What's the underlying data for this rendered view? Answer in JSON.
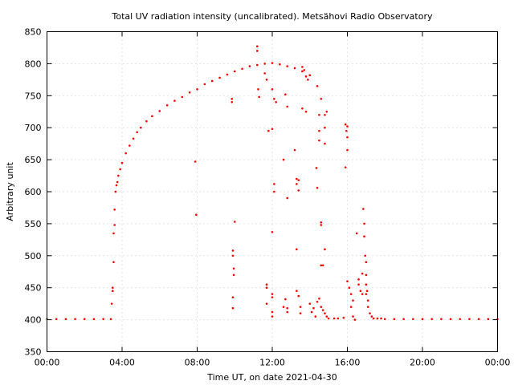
{
  "chart_data": {
    "type": "scatter",
    "title": "Total UV radiation intensity (uncalibrated). Metsähovi Radio Observatory",
    "xlabel": "Time UT, on date 2021-04-30",
    "ylabel": "Arbitrary unit",
    "xlim": [
      0,
      24
    ],
    "ylim": [
      350,
      850
    ],
    "x_ticks": [
      0,
      4,
      8,
      12,
      16,
      20,
      24
    ],
    "x_tick_labels": [
      "00:00",
      "04:00",
      "08:00",
      "12:00",
      "16:00",
      "20:00",
      "00:00"
    ],
    "y_ticks": [
      350,
      400,
      450,
      500,
      550,
      600,
      650,
      700,
      750,
      800,
      850
    ],
    "y_tick_labels": [
      "350",
      "400",
      "450",
      "500",
      "550",
      "600",
      "650",
      "700",
      "750",
      "800",
      "850"
    ],
    "grid": true,
    "marker_color": "#ff0000",
    "series": [
      {
        "points": [
          [
            0.0,
            401
          ],
          [
            0.5,
            401
          ],
          [
            1.0,
            401
          ],
          [
            1.5,
            401
          ],
          [
            2.0,
            401
          ],
          [
            2.5,
            401
          ],
          [
            3.0,
            401
          ],
          [
            3.4,
            401
          ],
          [
            3.45,
            425
          ],
          [
            3.5,
            445
          ],
          [
            3.5,
            450
          ],
          [
            3.55,
            490
          ],
          [
            3.55,
            535
          ],
          [
            3.6,
            548
          ],
          [
            3.6,
            572
          ],
          [
            3.65,
            600
          ],
          [
            3.7,
            610
          ],
          [
            3.75,
            615
          ],
          [
            3.8,
            625
          ],
          [
            3.9,
            635
          ],
          [
            4.0,
            645
          ],
          [
            4.2,
            660
          ],
          [
            4.4,
            672
          ],
          [
            4.6,
            683
          ],
          [
            4.8,
            693
          ],
          [
            5.0,
            700
          ],
          [
            5.3,
            710
          ],
          [
            5.6,
            718
          ],
          [
            6.0,
            726
          ],
          [
            6.4,
            735
          ],
          [
            6.8,
            742
          ],
          [
            7.2,
            748
          ],
          [
            7.6,
            755
          ],
          [
            8.0,
            760
          ],
          [
            8.4,
            768
          ],
          [
            8.8,
            773
          ],
          [
            9.2,
            778
          ],
          [
            9.6,
            783
          ],
          [
            10.0,
            788
          ],
          [
            10.4,
            792
          ],
          [
            10.8,
            796
          ],
          [
            11.2,
            798
          ],
          [
            11.6,
            800
          ],
          [
            12.0,
            801
          ],
          [
            12.4,
            799
          ],
          [
            12.8,
            796
          ],
          [
            13.2,
            793
          ],
          [
            13.6,
            788
          ],
          [
            14.0,
            782
          ],
          [
            14.4,
            765
          ],
          [
            14.6,
            745
          ],
          [
            14.8,
            720
          ],
          [
            7.9,
            647
          ],
          [
            7.95,
            564
          ],
          [
            9.85,
            745
          ],
          [
            9.85,
            740
          ],
          [
            9.9,
            508
          ],
          [
            9.9,
            500
          ],
          [
            9.95,
            480
          ],
          [
            9.95,
            470
          ],
          [
            9.9,
            435
          ],
          [
            9.9,
            418
          ],
          [
            10.0,
            553
          ],
          [
            11.2,
            827
          ],
          [
            11.2,
            820
          ],
          [
            11.25,
            760
          ],
          [
            11.3,
            748
          ],
          [
            11.6,
            785
          ],
          [
            11.7,
            775
          ],
          [
            11.8,
            695
          ],
          [
            11.7,
            455
          ],
          [
            11.7,
            450
          ],
          [
            11.7,
            425
          ],
          [
            12.0,
            760
          ],
          [
            12.1,
            745
          ],
          [
            12.2,
            740
          ],
          [
            12.0,
            698
          ],
          [
            12.1,
            612
          ],
          [
            12.1,
            600
          ],
          [
            12.0,
            537
          ],
          [
            12.0,
            440
          ],
          [
            12.0,
            435
          ],
          [
            12.0,
            412
          ],
          [
            12.0,
            405
          ],
          [
            12.6,
            650
          ],
          [
            12.7,
            752
          ],
          [
            12.8,
            733
          ],
          [
            12.8,
            590
          ],
          [
            12.6,
            420
          ],
          [
            12.7,
            432
          ],
          [
            12.8,
            418
          ],
          [
            12.8,
            412
          ],
          [
            13.2,
            665
          ],
          [
            13.3,
            620
          ],
          [
            13.3,
            612
          ],
          [
            13.4,
            618
          ],
          [
            13.4,
            602
          ],
          [
            13.3,
            510
          ],
          [
            13.3,
            445
          ],
          [
            13.4,
            437
          ],
          [
            13.5,
            420
          ],
          [
            13.5,
            410
          ],
          [
            13.6,
            795
          ],
          [
            13.7,
            790
          ],
          [
            13.8,
            780
          ],
          [
            13.9,
            775
          ],
          [
            13.8,
            725
          ],
          [
            13.6,
            730
          ],
          [
            14.0,
            782
          ],
          [
            14.0,
            425
          ],
          [
            14.1,
            412
          ],
          [
            14.2,
            418
          ],
          [
            14.3,
            405
          ],
          [
            14.35,
            637
          ],
          [
            14.4,
            606
          ],
          [
            14.5,
            720
          ],
          [
            14.5,
            695
          ],
          [
            14.5,
            680
          ],
          [
            14.6,
            552
          ],
          [
            14.6,
            548
          ],
          [
            14.6,
            485
          ],
          [
            14.7,
            485
          ],
          [
            14.8,
            510
          ],
          [
            14.8,
            700
          ],
          [
            14.8,
            675
          ],
          [
            14.9,
            725
          ],
          [
            14.4,
            428
          ],
          [
            14.5,
            433
          ],
          [
            14.6,
            420
          ],
          [
            14.7,
            415
          ],
          [
            14.8,
            410
          ],
          [
            14.9,
            405
          ],
          [
            15.0,
            402
          ],
          [
            15.3,
            402
          ],
          [
            15.5,
            402
          ],
          [
            15.8,
            403
          ],
          [
            15.9,
            705
          ],
          [
            15.95,
            695
          ],
          [
            16.0,
            702
          ],
          [
            16.0,
            685
          ],
          [
            16.0,
            665
          ],
          [
            15.9,
            638
          ],
          [
            16.0,
            460
          ],
          [
            16.1,
            450
          ],
          [
            16.2,
            440
          ],
          [
            16.3,
            430
          ],
          [
            16.2,
            420
          ],
          [
            16.3,
            405
          ],
          [
            16.4,
            400
          ],
          [
            16.5,
            535
          ],
          [
            16.6,
            455
          ],
          [
            16.6,
            463
          ],
          [
            16.7,
            445
          ],
          [
            16.8,
            440
          ],
          [
            16.8,
            472
          ],
          [
            16.85,
            573
          ],
          [
            16.9,
            550
          ],
          [
            16.9,
            530
          ],
          [
            16.95,
            500
          ],
          [
            17.0,
            490
          ],
          [
            17.0,
            470
          ],
          [
            17.0,
            455
          ],
          [
            17.0,
            440
          ],
          [
            17.05,
            445
          ],
          [
            17.1,
            430
          ],
          [
            17.1,
            420
          ],
          [
            17.2,
            410
          ],
          [
            17.3,
            405
          ],
          [
            17.4,
            402
          ],
          [
            17.6,
            402
          ],
          [
            17.8,
            402
          ],
          [
            18.0,
            401
          ],
          [
            18.5,
            401
          ],
          [
            19.0,
            401
          ],
          [
            19.5,
            401
          ],
          [
            20.0,
            401
          ],
          [
            20.5,
            401
          ],
          [
            21.0,
            401
          ],
          [
            21.5,
            401
          ],
          [
            22.0,
            401
          ],
          [
            22.5,
            401
          ],
          [
            23.0,
            401
          ],
          [
            23.5,
            401
          ],
          [
            24.0,
            401
          ]
        ]
      }
    ]
  }
}
